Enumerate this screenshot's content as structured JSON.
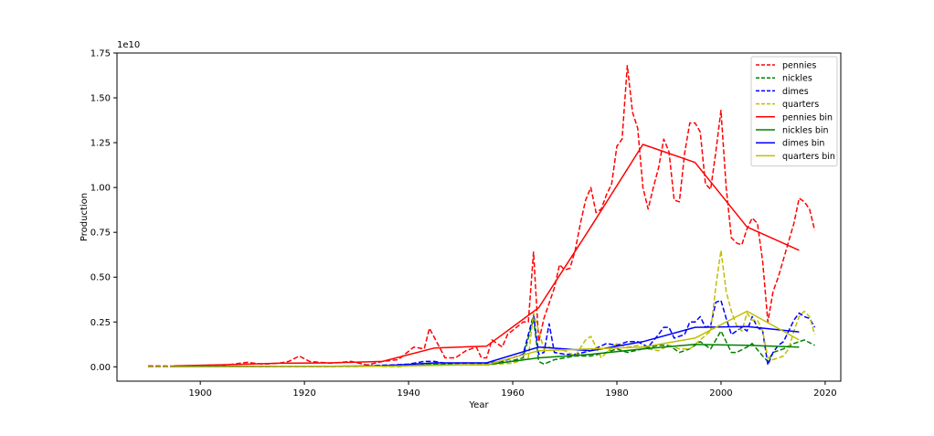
{
  "chart_data": {
    "type": "line",
    "xlabel": "Year",
    "ylabel": "Production",
    "y_offset_label": "1e10",
    "xlim": [
      1884,
      2023
    ],
    "ylim": [
      -0.08,
      1.75
    ],
    "y_scale": 10000000000.0,
    "xticks": [
      1900,
      1920,
      1940,
      1960,
      1980,
      2000,
      2020
    ],
    "xtick_labels": [
      "1900",
      "1920",
      "1940",
      "1960",
      "1980",
      "2000",
      "2020"
    ],
    "yticks": [
      0,
      0.25,
      0.5,
      0.75,
      1.0,
      1.25,
      1.5,
      1.75
    ],
    "ytick_labels": [
      "0.00",
      "0.25",
      "0.50",
      "0.75",
      "1.00",
      "1.25",
      "1.50",
      "1.75"
    ],
    "legend_position": "top-right",
    "series": [
      {
        "name": "pennies",
        "color": "#ff0000",
        "dashed": true,
        "points": [
          [
            1890,
            0.005
          ],
          [
            1895,
            0.004
          ],
          [
            1900,
            0.007
          ],
          [
            1905,
            0.01
          ],
          [
            1909,
            0.025
          ],
          [
            1912,
            0.015
          ],
          [
            1915,
            0.02
          ],
          [
            1917,
            0.03
          ],
          [
            1919,
            0.06
          ],
          [
            1921,
            0.03
          ],
          [
            1925,
            0.02
          ],
          [
            1929,
            0.03
          ],
          [
            1932,
            0.01
          ],
          [
            1935,
            0.03
          ],
          [
            1938,
            0.04
          ],
          [
            1941,
            0.11
          ],
          [
            1943,
            0.1
          ],
          [
            1944,
            0.215
          ],
          [
            1945,
            0.16
          ],
          [
            1947,
            0.05
          ],
          [
            1949,
            0.05
          ],
          [
            1951,
            0.09
          ],
          [
            1952,
            0.1
          ],
          [
            1953,
            0.11
          ],
          [
            1954,
            0.05
          ],
          [
            1955,
            0.05
          ],
          [
            1956,
            0.15
          ],
          [
            1958,
            0.11
          ],
          [
            1959,
            0.18
          ],
          [
            1962,
            0.25
          ],
          [
            1963,
            0.25
          ],
          [
            1964,
            0.64
          ],
          [
            1965,
            0.14
          ],
          [
            1966,
            0.27
          ],
          [
            1968,
            0.44
          ],
          [
            1969,
            0.57
          ],
          [
            1970,
            0.54
          ],
          [
            1971,
            0.55
          ],
          [
            1972,
            0.65
          ],
          [
            1973,
            0.8
          ],
          [
            1974,
            0.93
          ],
          [
            1975,
            1.0
          ],
          [
            1976,
            0.86
          ],
          [
            1977,
            0.88
          ],
          [
            1978,
            0.96
          ],
          [
            1979,
            1.02
          ],
          [
            1980,
            1.23
          ],
          [
            1981,
            1.27
          ],
          [
            1982,
            1.68
          ],
          [
            1983,
            1.42
          ],
          [
            1984,
            1.33
          ],
          [
            1985,
            1.0
          ],
          [
            1986,
            0.88
          ],
          [
            1987,
            1.0
          ],
          [
            1988,
            1.11
          ],
          [
            1989,
            1.27
          ],
          [
            1990,
            1.2
          ],
          [
            1991,
            0.93
          ],
          [
            1992,
            0.92
          ],
          [
            1993,
            1.19
          ],
          [
            1994,
            1.36
          ],
          [
            1995,
            1.36
          ],
          [
            1996,
            1.31
          ],
          [
            1997,
            1.02
          ],
          [
            1998,
            0.99
          ],
          [
            1999,
            1.2
          ],
          [
            2000,
            1.43
          ],
          [
            2001,
            1.0
          ],
          [
            2002,
            0.72
          ],
          [
            2003,
            0.69
          ],
          [
            2004,
            0.68
          ],
          [
            2005,
            0.77
          ],
          [
            2006,
            0.83
          ],
          [
            2007,
            0.8
          ],
          [
            2008,
            0.59
          ],
          [
            2009,
            0.25
          ],
          [
            2010,
            0.42
          ],
          [
            2011,
            0.5
          ],
          [
            2012,
            0.6
          ],
          [
            2013,
            0.7
          ],
          [
            2014,
            0.8
          ],
          [
            2015,
            0.94
          ],
          [
            2016,
            0.92
          ],
          [
            2017,
            0.88
          ],
          [
            2018,
            0.76
          ]
        ]
      },
      {
        "name": "nickles",
        "color": "#008000",
        "dashed": true,
        "points": [
          [
            1890,
            0.001
          ],
          [
            1900,
            0.001
          ],
          [
            1910,
            0.002
          ],
          [
            1920,
            0.003
          ],
          [
            1930,
            0.003
          ],
          [
            1938,
            0.002
          ],
          [
            1942,
            0.008
          ],
          [
            1945,
            0.015
          ],
          [
            1950,
            0.01
          ],
          [
            1955,
            0.012
          ],
          [
            1958,
            0.02
          ],
          [
            1962,
            0.05
          ],
          [
            1964,
            0.27
          ],
          [
            1965,
            0.03
          ],
          [
            1966,
            0.015
          ],
          [
            1968,
            0.04
          ],
          [
            1970,
            0.05
          ],
          [
            1972,
            0.06
          ],
          [
            1975,
            0.06
          ],
          [
            1978,
            0.08
          ],
          [
            1980,
            0.1
          ],
          [
            1982,
            0.08
          ],
          [
            1985,
            0.1
          ],
          [
            1988,
            0.12
          ],
          [
            1990,
            0.12
          ],
          [
            1992,
            0.08
          ],
          [
            1994,
            0.1
          ],
          [
            1996,
            0.14
          ],
          [
            1998,
            0.1
          ],
          [
            2000,
            0.2
          ],
          [
            2002,
            0.08
          ],
          [
            2003,
            0.08
          ],
          [
            2005,
            0.11
          ],
          [
            2006,
            0.13
          ],
          [
            2008,
            0.06
          ],
          [
            2009,
            0.03
          ],
          [
            2010,
            0.08
          ],
          [
            2012,
            0.1
          ],
          [
            2014,
            0.13
          ],
          [
            2016,
            0.15
          ],
          [
            2018,
            0.12
          ]
        ]
      },
      {
        "name": "dimes",
        "color": "#0000ff",
        "dashed": true,
        "points": [
          [
            1890,
            0.001
          ],
          [
            1900,
            0.001
          ],
          [
            1910,
            0.002
          ],
          [
            1920,
            0.002
          ],
          [
            1930,
            0.002
          ],
          [
            1940,
            0.015
          ],
          [
            1943,
            0.03
          ],
          [
            1945,
            0.03
          ],
          [
            1947,
            0.02
          ],
          [
            1950,
            0.02
          ],
          [
            1953,
            0.02
          ],
          [
            1955,
            0.02
          ],
          [
            1958,
            0.03
          ],
          [
            1962,
            0.07
          ],
          [
            1964,
            0.29
          ],
          [
            1965,
            0.07
          ],
          [
            1966,
            0.08
          ],
          [
            1967,
            0.24
          ],
          [
            1968,
            0.08
          ],
          [
            1970,
            0.07
          ],
          [
            1972,
            0.07
          ],
          [
            1975,
            0.09
          ],
          [
            1978,
            0.13
          ],
          [
            1980,
            0.12
          ],
          [
            1982,
            0.14
          ],
          [
            1984,
            0.14
          ],
          [
            1986,
            0.11
          ],
          [
            1988,
            0.18
          ],
          [
            1989,
            0.22
          ],
          [
            1990,
            0.22
          ],
          [
            1991,
            0.16
          ],
          [
            1993,
            0.18
          ],
          [
            1994,
            0.25
          ],
          [
            1995,
            0.25
          ],
          [
            1996,
            0.28
          ],
          [
            1997,
            0.22
          ],
          [
            1998,
            0.23
          ],
          [
            1999,
            0.36
          ],
          [
            2000,
            0.37
          ],
          [
            2001,
            0.27
          ],
          [
            2002,
            0.18
          ],
          [
            2003,
            0.2
          ],
          [
            2004,
            0.22
          ],
          [
            2005,
            0.2
          ],
          [
            2006,
            0.28
          ],
          [
            2007,
            0.22
          ],
          [
            2008,
            0.2
          ],
          [
            2009,
            0.01
          ],
          [
            2010,
            0.08
          ],
          [
            2011,
            0.12
          ],
          [
            2012,
            0.14
          ],
          [
            2013,
            0.2
          ],
          [
            2014,
            0.26
          ],
          [
            2015,
            0.3
          ],
          [
            2016,
            0.28
          ],
          [
            2017,
            0.27
          ],
          [
            2018,
            0.22
          ]
        ]
      },
      {
        "name": "quarters",
        "color": "#bfbf00",
        "dashed": true,
        "points": [
          [
            1890,
            0.001
          ],
          [
            1900,
            0.001
          ],
          [
            1910,
            0.002
          ],
          [
            1920,
            0.002
          ],
          [
            1930,
            0.002
          ],
          [
            1940,
            0.005
          ],
          [
            1945,
            0.01
          ],
          [
            1950,
            0.01
          ],
          [
            1955,
            0.012
          ],
          [
            1960,
            0.02
          ],
          [
            1963,
            0.05
          ],
          [
            1964,
            0.3
          ],
          [
            1965,
            0.2
          ],
          [
            1966,
            0.1
          ],
          [
            1967,
            0.11
          ],
          [
            1968,
            0.1
          ],
          [
            1970,
            0.09
          ],
          [
            1972,
            0.06
          ],
          [
            1974,
            0.15
          ],
          [
            1975,
            0.17
          ],
          [
            1977,
            0.05
          ],
          [
            1978,
            0.08
          ],
          [
            1980,
            0.13
          ],
          [
            1982,
            0.11
          ],
          [
            1984,
            0.12
          ],
          [
            1986,
            0.1
          ],
          [
            1988,
            0.09
          ],
          [
            1990,
            0.12
          ],
          [
            1992,
            0.1
          ],
          [
            1994,
            0.1
          ],
          [
            1996,
            0.15
          ],
          [
            1998,
            0.2
          ],
          [
            1999,
            0.45
          ],
          [
            2000,
            0.65
          ],
          [
            2001,
            0.42
          ],
          [
            2002,
            0.31
          ],
          [
            2003,
            0.23
          ],
          [
            2004,
            0.2
          ],
          [
            2005,
            0.3
          ],
          [
            2006,
            0.26
          ],
          [
            2007,
            0.26
          ],
          [
            2008,
            0.2
          ],
          [
            2009,
            0.05
          ],
          [
            2010,
            0.04
          ],
          [
            2011,
            0.05
          ],
          [
            2012,
            0.06
          ],
          [
            2013,
            0.1
          ],
          [
            2014,
            0.2
          ],
          [
            2015,
            0.28
          ],
          [
            2016,
            0.31
          ],
          [
            2017,
            0.28
          ],
          [
            2018,
            0.18
          ]
        ]
      },
      {
        "name": "pennies bin",
        "color": "#ff0000",
        "dashed": false,
        "points": [
          [
            1895,
            0.005
          ],
          [
            1905,
            0.012
          ],
          [
            1915,
            0.02
          ],
          [
            1925,
            0.022
          ],
          [
            1935,
            0.03
          ],
          [
            1945,
            0.105
          ],
          [
            1955,
            0.115
          ],
          [
            1965,
            0.33
          ],
          [
            1975,
            0.78
          ],
          [
            1985,
            1.24
          ],
          [
            1995,
            1.14
          ],
          [
            2005,
            0.78
          ],
          [
            2015,
            0.65
          ]
        ]
      },
      {
        "name": "nickles bin",
        "color": "#008000",
        "dashed": false,
        "points": [
          [
            1895,
            0.001
          ],
          [
            1905,
            0.002
          ],
          [
            1915,
            0.003
          ],
          [
            1925,
            0.003
          ],
          [
            1935,
            0.004
          ],
          [
            1945,
            0.01
          ],
          [
            1955,
            0.012
          ],
          [
            1965,
            0.05
          ],
          [
            1975,
            0.07
          ],
          [
            1985,
            0.1
          ],
          [
            1995,
            0.125
          ],
          [
            2005,
            0.12
          ],
          [
            2015,
            0.11
          ]
        ]
      },
      {
        "name": "dimes bin",
        "color": "#0000ff",
        "dashed": false,
        "points": [
          [
            1895,
            0.001
          ],
          [
            1905,
            0.002
          ],
          [
            1915,
            0.002
          ],
          [
            1925,
            0.002
          ],
          [
            1935,
            0.005
          ],
          [
            1945,
            0.022
          ],
          [
            1955,
            0.022
          ],
          [
            1965,
            0.11
          ],
          [
            1975,
            0.09
          ],
          [
            1985,
            0.14
          ],
          [
            1995,
            0.22
          ],
          [
            2005,
            0.225
          ],
          [
            2015,
            0.195
          ]
        ]
      },
      {
        "name": "quarters bin",
        "color": "#bfbf00",
        "dashed": false,
        "points": [
          [
            1895,
            0.001
          ],
          [
            1905,
            0.001
          ],
          [
            1915,
            0.002
          ],
          [
            1925,
            0.002
          ],
          [
            1935,
            0.003
          ],
          [
            1945,
            0.008
          ],
          [
            1955,
            0.012
          ],
          [
            1965,
            0.09
          ],
          [
            1975,
            0.1
          ],
          [
            1985,
            0.11
          ],
          [
            1995,
            0.16
          ],
          [
            2005,
            0.31
          ],
          [
            2015,
            0.15
          ]
        ]
      }
    ]
  }
}
